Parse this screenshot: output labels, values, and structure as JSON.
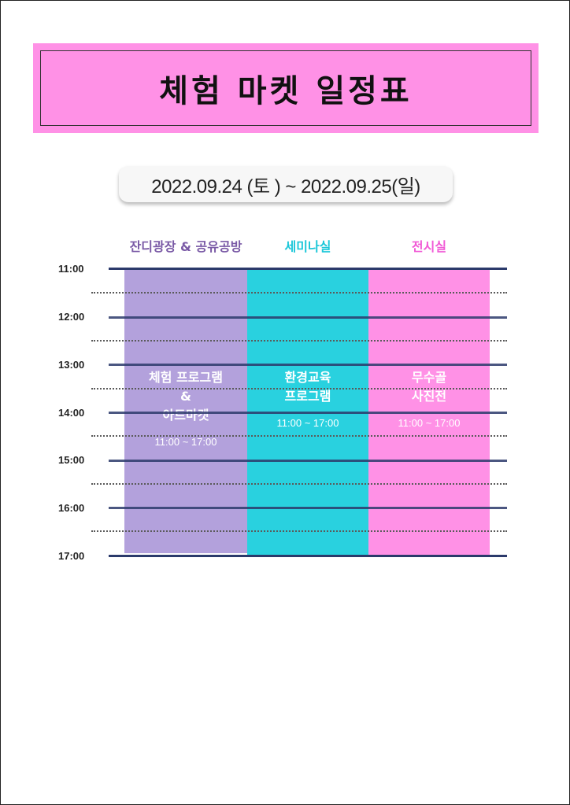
{
  "title": "체험 마켓 일정표",
  "date_range": "2022.09.24 (토 ) ~ 2022.09.25(일)",
  "columns": [
    {
      "header": "잔디광장 & 공유공방",
      "color": "#7a5aa6",
      "block_color": "#b3a1dc",
      "program": "체험 프로그램\n&\n아트마켓",
      "time": "11:00 ~ 17:00"
    },
    {
      "header": "세미나실",
      "color": "#1cc7d9",
      "block_color": "#29d1df",
      "program": "환경교육\n프로그램",
      "time": "11:00 ~ 17:00"
    },
    {
      "header": "전시실",
      "color": "#f15ad6",
      "block_color": "#ff91e6",
      "program": "무수골\n사진전",
      "time": "11:00 ~ 17:00"
    }
  ],
  "times": [
    "11:00",
    "12:00",
    "13:00",
    "14:00",
    "15:00",
    "16:00",
    "17:00"
  ]
}
